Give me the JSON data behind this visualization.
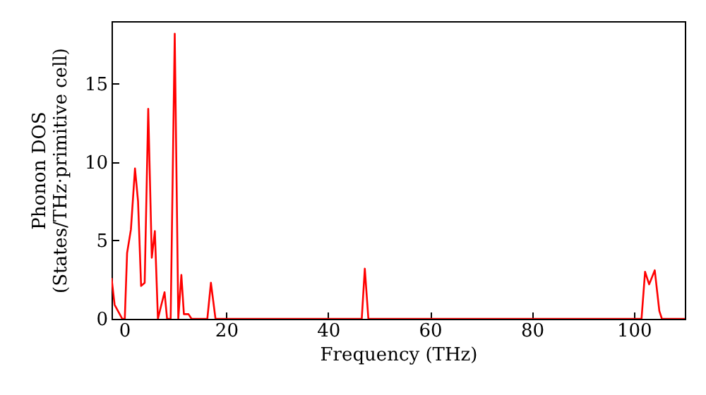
{
  "chart_data": {
    "type": "line",
    "xlabel": "Frequency (THz)",
    "ylabel": "Phonon DOS\n(States/THz·primitive cell)",
    "x": [
      -2.5,
      -1.9,
      -0.4,
      0.1,
      0.55,
      1.3,
      2.1,
      2.7,
      3.3,
      4.0,
      4.7,
      5.4,
      6.0,
      6.6,
      7.2,
      7.9,
      8.4,
      9.1,
      9.9,
      10.6,
      11.2,
      11.7,
      12.6,
      13.2,
      16.3,
      17.0,
      17.9,
      46.6,
      47.2,
      47.9,
      101.5,
      102.2,
      103.0,
      104.1,
      105.0,
      105.5,
      110
    ],
    "series": [
      {
        "color": "#ff0000",
        "values": [
          2.6,
          0.9,
          0,
          0,
          4.2,
          5.7,
          9.6,
          7.5,
          2.1,
          2.3,
          13.4,
          3.9,
          5.6,
          0,
          0.8,
          1.7,
          0,
          0,
          18.2,
          0,
          2.8,
          0.3,
          0.3,
          0,
          0,
          2.3,
          0,
          0,
          3.2,
          0,
          0,
          3.0,
          2.2,
          3.1,
          0.5,
          0,
          0
        ]
      }
    ],
    "xlim": [
      -2.5,
      110
    ],
    "ylim": [
      0,
      19
    ],
    "xticks": [
      0,
      20,
      40,
      60,
      80,
      100
    ],
    "yticks": [
      0,
      5,
      10,
      15
    ],
    "grid": false
  }
}
